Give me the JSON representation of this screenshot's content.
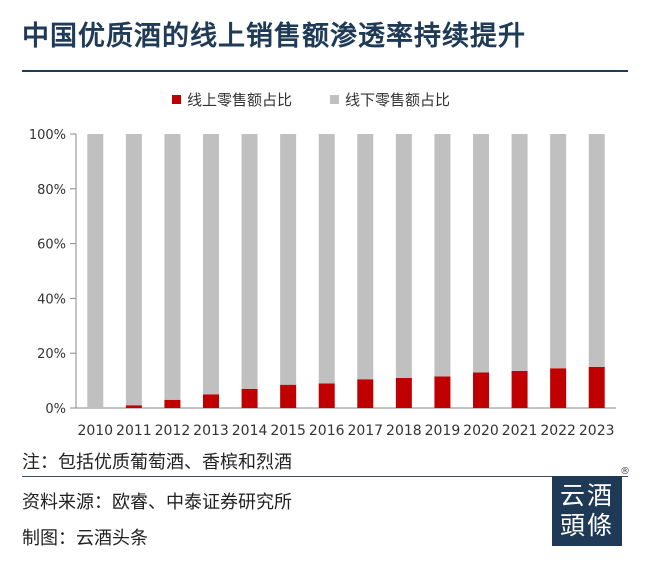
{
  "title": "中国优质酒的线上销售额渗透率持续提升",
  "chart_data": {
    "type": "bar",
    "stacked": true,
    "categories": [
      "2010",
      "2011",
      "2012",
      "2013",
      "2014",
      "2015",
      "2016",
      "2017",
      "2018",
      "2019",
      "2020",
      "2021",
      "2022",
      "2023"
    ],
    "series": [
      {
        "name": "线上零售额占比",
        "color": "#c00000",
        "values": [
          0,
          1,
          3,
          5,
          7,
          8.5,
          9,
          10.5,
          11,
          11.5,
          13,
          13.5,
          14.5,
          15
        ]
      },
      {
        "name": "线下零售额占比",
        "color": "#c0c0c0",
        "values": [
          100,
          99,
          97,
          95,
          93,
          91.5,
          91,
          89.5,
          89,
          88.5,
          87,
          86.5,
          85.5,
          85
        ]
      }
    ],
    "yticks": [
      "0%",
      "20%",
      "40%",
      "60%",
      "80%",
      "100%"
    ],
    "ylim": [
      0,
      100
    ],
    "legend": "top",
    "grid": false
  },
  "notes": {
    "note": "注：包括优质葡萄酒、香槟和烈酒",
    "source": "资料来源：欧睿、中泰证券研究所",
    "made_by": "制图：云酒头条"
  },
  "logo": {
    "line1": "云酒",
    "line2": "頭條",
    "mark": "®"
  }
}
